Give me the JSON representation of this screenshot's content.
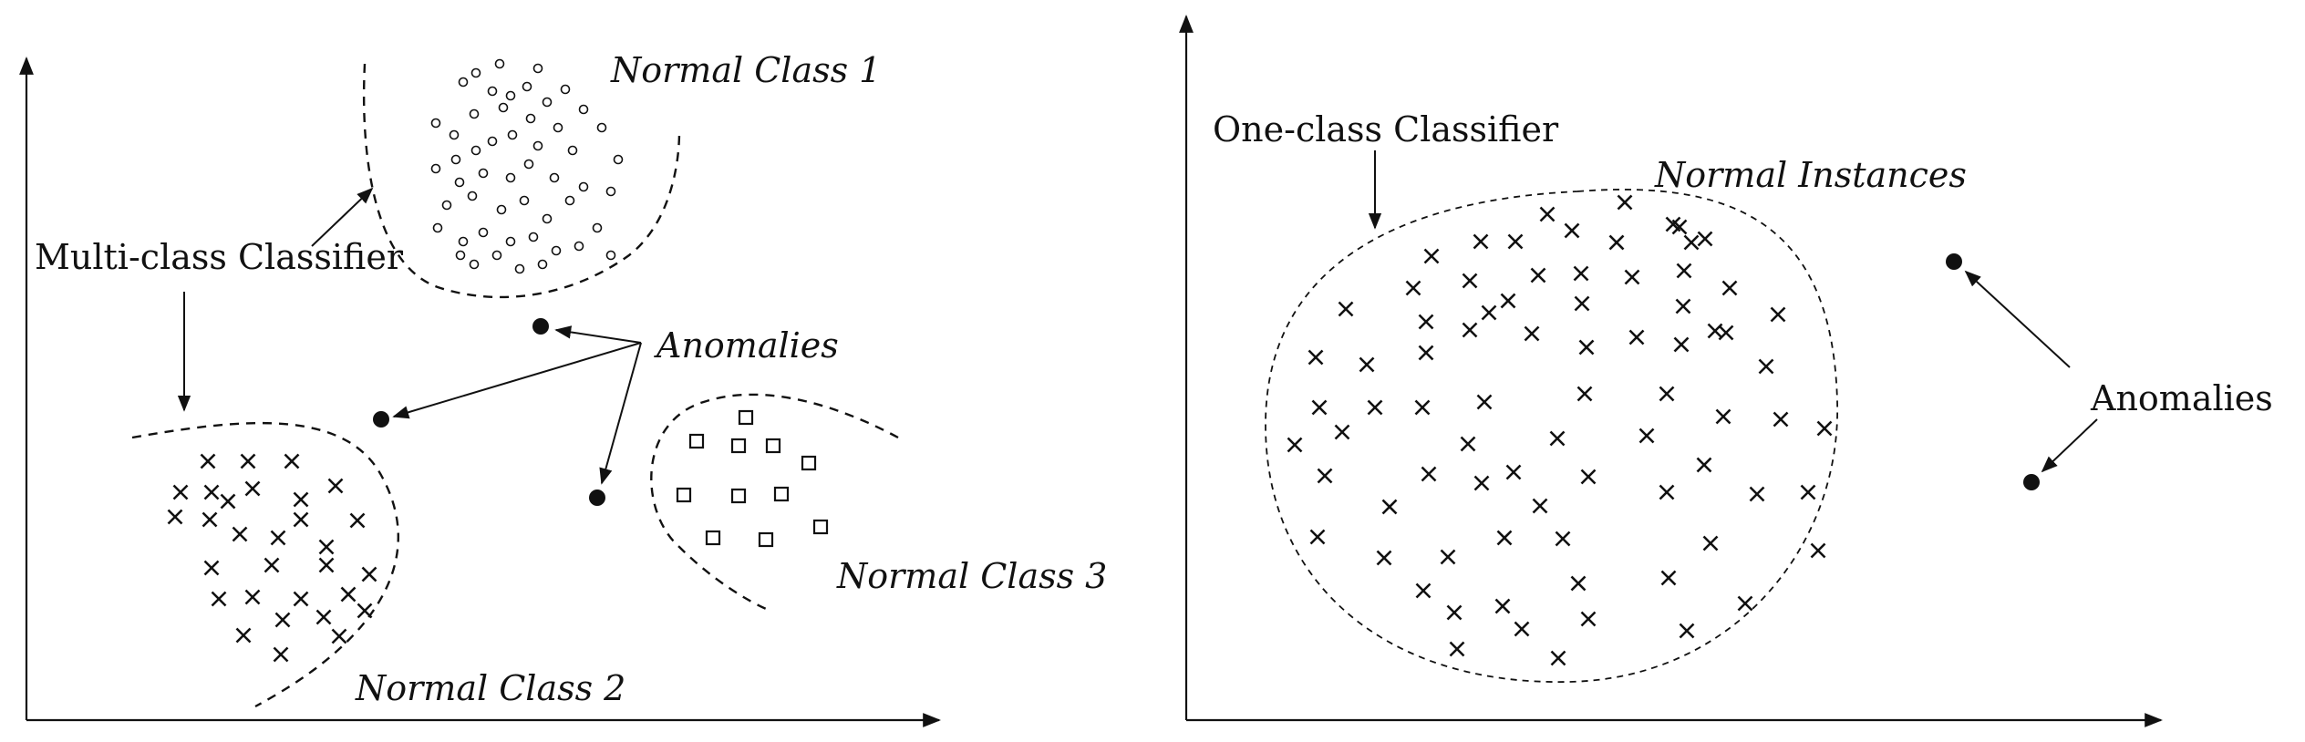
{
  "left_panel": {
    "labels": {
      "normal_class_1": "Normal Class 1",
      "normal_class_2": "Normal Class 2",
      "normal_class_3": "Normal Class 3",
      "anomalies": "Anomalies",
      "classifier": "Multi-class Classifier"
    }
  },
  "right_panel": {
    "labels": {
      "normal_instances": "Normal Instances",
      "anomalies": "Anomalies",
      "classifier": "One-class Classifier"
    }
  },
  "colors": {
    "ink": "#111111",
    "background": "#ffffff"
  },
  "markers": {
    "class1": "open-circle",
    "class2": "cross",
    "class3": "open-square",
    "anomaly": "filled-dot",
    "normal_instances": "cross"
  }
}
